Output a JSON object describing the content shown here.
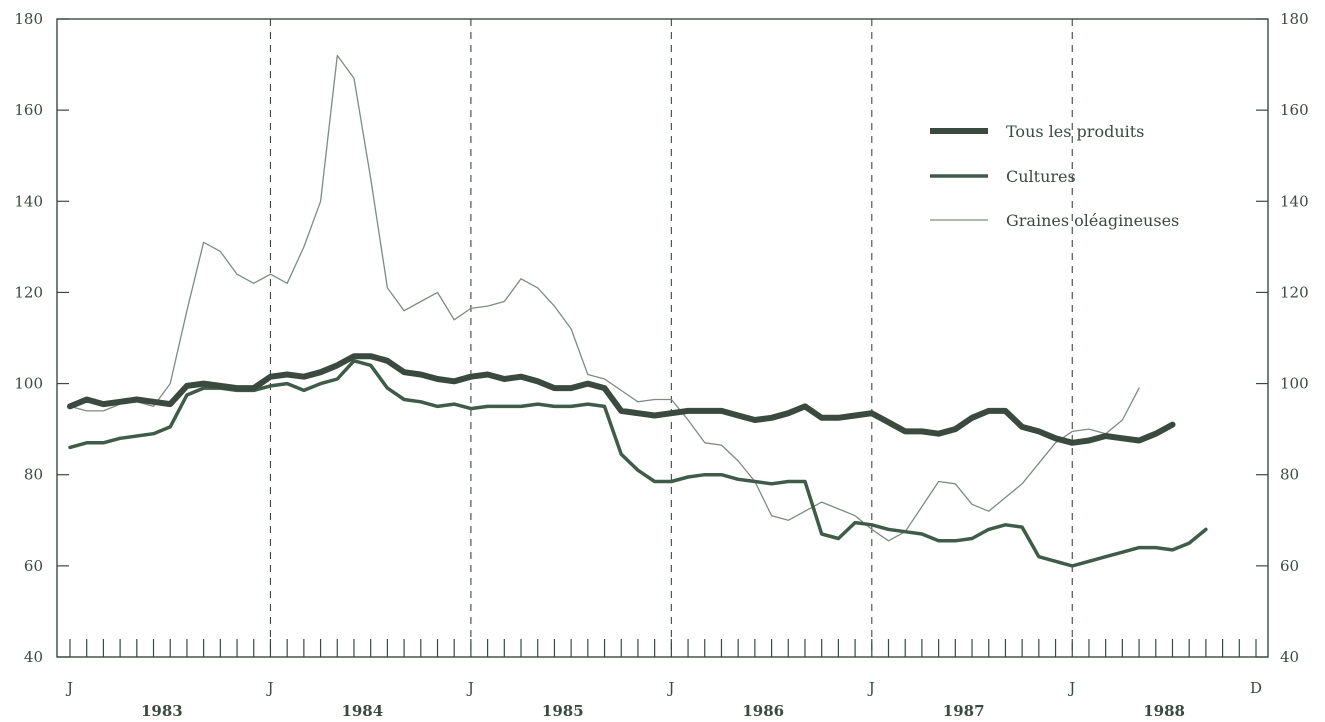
{
  "chart_data": {
    "type": "line",
    "title": "",
    "xlabel": "",
    "ylabel": "",
    "x_start": "1983-01",
    "x_end": "1988-12",
    "ylim": [
      40,
      180
    ],
    "yticks": [
      40,
      60,
      80,
      100,
      120,
      140,
      160,
      180
    ],
    "month_labels": [
      "J",
      "J",
      "J",
      "J",
      "J",
      "J",
      "D"
    ],
    "year_labels": [
      "1983",
      "1984",
      "1985",
      "1986",
      "1987",
      "1988"
    ],
    "legend_position": "top-right",
    "grid": "dashed vertical lines at each January",
    "series": [
      {
        "name": "Tous les produits",
        "color": "#3a4a3e",
        "style": "thick",
        "values": [
          95,
          96.5,
          95.5,
          96,
          96.5,
          96,
          95.5,
          99.5,
          100,
          99.5,
          99,
          99,
          101.5,
          102,
          101.5,
          102.5,
          104,
          106,
          106,
          105,
          102.5,
          102,
          101,
          100.5,
          101.5,
          102,
          101,
          101.5,
          100.5,
          99,
          99,
          100,
          99,
          94,
          93.5,
          93,
          93.5,
          94,
          94,
          94,
          93,
          92,
          92.5,
          93.5,
          95,
          92.5,
          92.5,
          93,
          93.5,
          91.5,
          89.5,
          89.5,
          89,
          90,
          92.5,
          94,
          94,
          90.5,
          89.5,
          88,
          87,
          87.5,
          88.5,
          88,
          87.5,
          89,
          91
        ]
      },
      {
        "name": "Cultures",
        "color": "#3f5c48",
        "style": "medium",
        "values": [
          86,
          87,
          87,
          88,
          88.5,
          89,
          90.5,
          97.5,
          99,
          99,
          98.5,
          98.5,
          99.5,
          100,
          98.5,
          100,
          101,
          105,
          104,
          99,
          96.5,
          96,
          95,
          95.5,
          94.5,
          95,
          95,
          95,
          95.5,
          95,
          95,
          95.5,
          95,
          84.5,
          81,
          78.5,
          78.5,
          79.5,
          80,
          80,
          79,
          78.5,
          78,
          78.5,
          78.5,
          67,
          66,
          69.5,
          69,
          68,
          67.5,
          67,
          65.5,
          65.5,
          66,
          68,
          69,
          68.5,
          62,
          61,
          60,
          61,
          62,
          63,
          64,
          64,
          63.5,
          65,
          68
        ]
      },
      {
        "name": "Graines oléagineuses",
        "color": "#7d8c81",
        "style": "thin",
        "values": [
          95,
          94,
          94,
          95.5,
          96,
          95,
          100,
          116,
          131,
          129,
          124,
          122,
          124,
          122,
          130,
          140,
          172,
          167,
          145,
          121,
          116,
          118,
          120,
          114,
          116.5,
          117,
          118,
          123,
          121,
          117,
          112,
          102,
          101,
          98.5,
          96,
          96.5,
          96.5,
          92,
          87,
          86.5,
          83,
          78.5,
          71,
          70,
          72,
          74,
          72.5,
          71,
          68,
          65.5,
          67.5,
          73,
          78.5,
          78,
          73.5,
          72,
          75,
          78,
          82.5,
          87,
          89.5,
          90,
          89,
          92,
          99
        ]
      }
    ]
  }
}
